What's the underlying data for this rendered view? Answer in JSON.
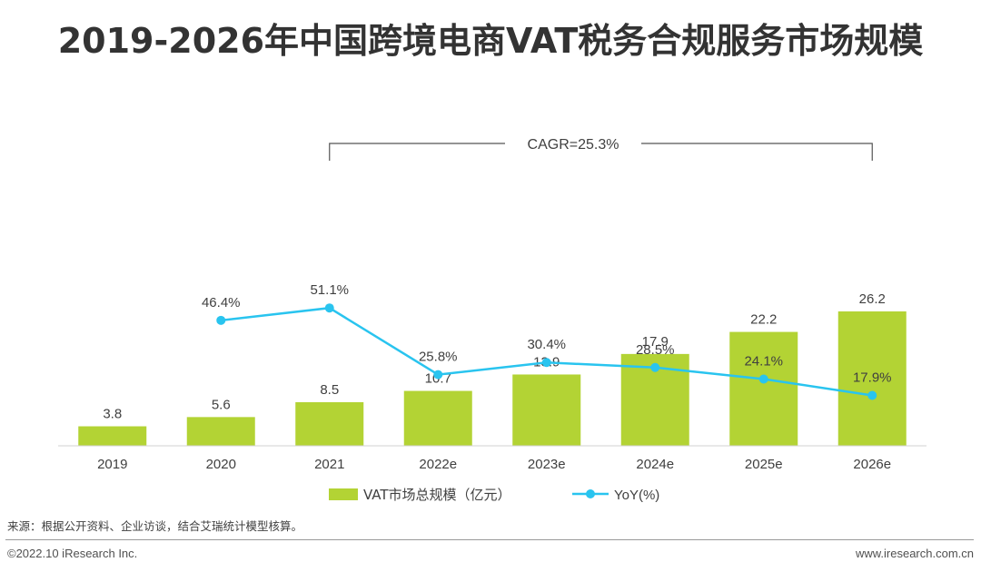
{
  "title": "2019-2026年中国跨境电商VAT税务合规服务市场规模",
  "chart_data": {
    "type": "bar",
    "categories": [
      "2019",
      "2020",
      "2021",
      "2022e",
      "2023e",
      "2024e",
      "2025e",
      "2026e"
    ],
    "series": [
      {
        "name": "VAT市场总规模（亿元）",
        "type": "bar",
        "color": "#b3d334",
        "values": [
          3.8,
          5.6,
          8.5,
          10.7,
          13.9,
          17.9,
          22.2,
          26.2
        ],
        "labels": [
          "3.8",
          "5.6",
          "8.5",
          "10.7",
          "13.9",
          "17.9",
          "22.2",
          "26.2"
        ]
      },
      {
        "name": "YoY(%)",
        "type": "line",
        "color": "#29c4ef",
        "values": [
          null,
          46.4,
          51.1,
          25.8,
          30.4,
          28.5,
          24.1,
          17.9
        ],
        "labels": [
          "",
          "46.4%",
          "51.1%",
          "25.8%",
          "30.4%",
          "28.5%",
          "24.1%",
          "17.9%"
        ]
      }
    ],
    "annotation": "CAGR=25.3%",
    "legend_position": "bottom",
    "grid": false
  },
  "footer": {
    "source": "来源：根据公开资料、企业访谈，结合艾瑞统计模型核算。",
    "copyright": "©2022.10 iResearch Inc.",
    "website": "www.iresearch.com.cn"
  }
}
